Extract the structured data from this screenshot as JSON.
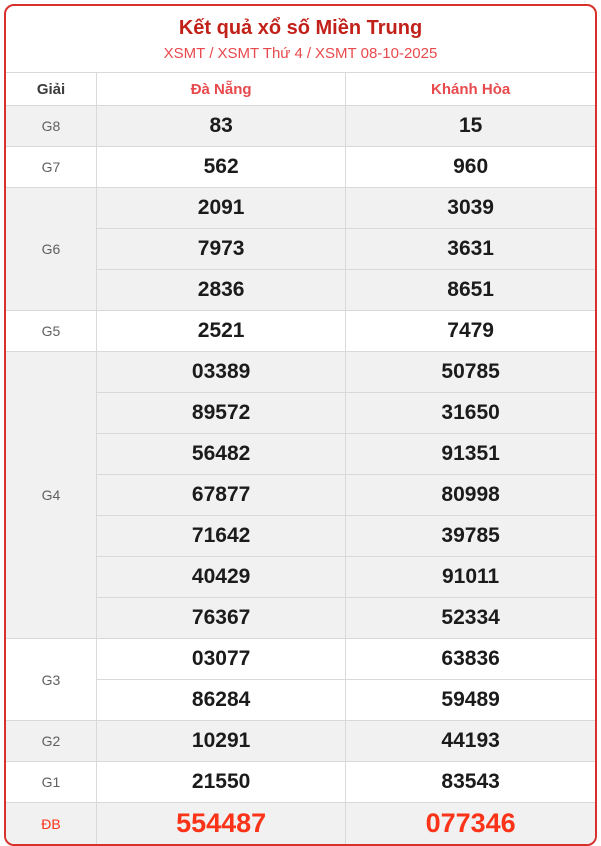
{
  "header": {
    "title": "Kết quả xổ số Miền Trung",
    "links": [
      "XSMT",
      "XSMT Thứ 4",
      "XSMT 08-10-2025"
    ],
    "separator": "/"
  },
  "table": {
    "columns": [
      "Giải",
      "Đà Nẵng",
      "Khánh Hòa"
    ],
    "groups": [
      {
        "prize": "G8",
        "special": false,
        "numbers": [
          [
            "83",
            "15"
          ]
        ]
      },
      {
        "prize": "G7",
        "special": false,
        "numbers": [
          [
            "562",
            "960"
          ]
        ]
      },
      {
        "prize": "G6",
        "special": false,
        "numbers": [
          [
            "2091",
            "3039"
          ],
          [
            "7973",
            "3631"
          ],
          [
            "2836",
            "8651"
          ]
        ]
      },
      {
        "prize": "G5",
        "special": false,
        "numbers": [
          [
            "2521",
            "7479"
          ]
        ]
      },
      {
        "prize": "G4",
        "special": false,
        "numbers": [
          [
            "03389",
            "50785"
          ],
          [
            "89572",
            "31650"
          ],
          [
            "56482",
            "91351"
          ],
          [
            "67877",
            "80998"
          ],
          [
            "71642",
            "39785"
          ],
          [
            "40429",
            "91011"
          ],
          [
            "76367",
            "52334"
          ]
        ]
      },
      {
        "prize": "G3",
        "special": false,
        "numbers": [
          [
            "03077",
            "63836"
          ],
          [
            "86284",
            "59489"
          ]
        ]
      },
      {
        "prize": "G2",
        "special": false,
        "numbers": [
          [
            "10291",
            "44193"
          ]
        ]
      },
      {
        "prize": "G1",
        "special": false,
        "numbers": [
          [
            "21550",
            "83543"
          ]
        ]
      },
      {
        "prize": "ĐB",
        "special": true,
        "numbers": [
          [
            "554487",
            "077346"
          ]
        ]
      }
    ]
  },
  "colors": {
    "title_red": "#c2211a",
    "link_red": "#e8494d",
    "special_red": "#fb3318",
    "card_border_red": "#d6312b",
    "stripe_gray": "#f1f1f2",
    "cell_border": "#d9d9d9",
    "number_black": "#1b1b1b",
    "label_gray": "#5f5f5f"
  }
}
